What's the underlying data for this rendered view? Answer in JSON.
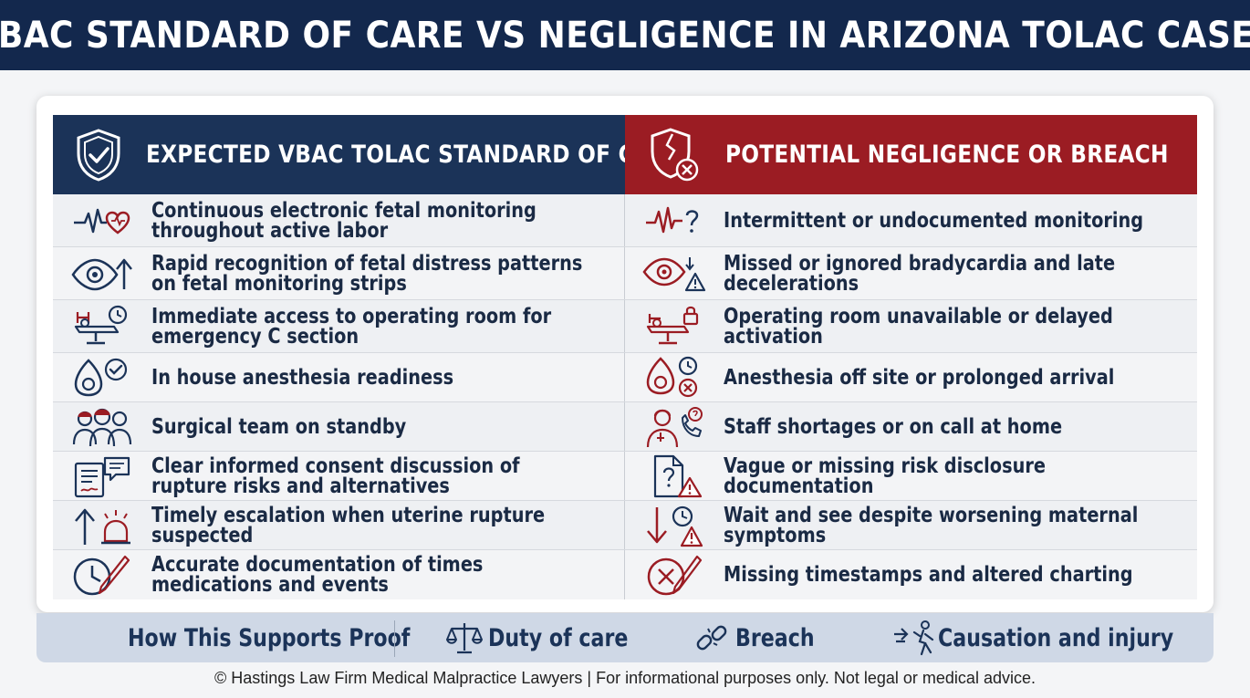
{
  "title": "VBAC STANDARD OF CARE VS NEGLIGENCE IN ARIZONA TOLAC CASES",
  "headers": {
    "left": "EXPECTED VBAC TOLAC STANDARD OF CARE",
    "right": "POTENTIAL NEGLIGENCE OR BREACH",
    "left_icon": "shield-check-icon",
    "right_icon": "broken-shield-x-icon"
  },
  "rows": [
    {
      "care": "Continuous electronic fetal monitoring throughout active labor",
      "breach": "Intermittent or undocumented monitoring",
      "care_icon": "heartbeat-monitor-icon",
      "breach_icon": "heartbeat-question-icon"
    },
    {
      "care": "Rapid recognition of fetal distress patterns on fetal monitoring strips",
      "breach": "Missed or ignored bradycardia and late decelerations",
      "care_icon": "eye-arrow-up-icon",
      "breach_icon": "eye-warning-icon"
    },
    {
      "care": "Immediate access to operating room for emergency C section",
      "breach": "Operating room unavailable or delayed activation",
      "care_icon": "operating-table-clock-icon",
      "breach_icon": "operating-table-lock-icon"
    },
    {
      "care": "In house anesthesia readiness",
      "breach": "Anesthesia off site or prolonged arrival",
      "care_icon": "anesthesia-mask-check-icon",
      "breach_icon": "anesthesia-mask-clock-icon"
    },
    {
      "care": "Surgical team on standby",
      "breach": "Staff shortages or on call at home",
      "care_icon": "surgical-team-icon",
      "breach_icon": "doctor-phone-icon"
    },
    {
      "care": "Clear informed consent discussion of rupture risks and alternatives",
      "breach": "Vague or missing risk disclosure documentation",
      "care_icon": "consent-form-chat-icon",
      "breach_icon": "document-question-warning-icon"
    },
    {
      "care": "Timely escalation when uterine rupture suspected",
      "breach": "Wait and see despite worsening maternal symptoms",
      "care_icon": "arrow-up-alarm-icon",
      "breach_icon": "arrow-down-clock-warning-icon"
    },
    {
      "care": "Accurate documentation of times medications and events",
      "breach": "Missing timestamps and altered charting",
      "care_icon": "clock-pen-icon",
      "breach_icon": "clock-x-pen-icon"
    }
  ],
  "proof_bar": {
    "label": "How This Supports Proof",
    "items": [
      {
        "label": "Duty of care",
        "icon": "scales-icon"
      },
      {
        "label": "Breach",
        "icon": "broken-chain-icon"
      },
      {
        "label": "Causation and injury",
        "icon": "impact-person-icon"
      }
    ]
  },
  "footer": "© Hastings Law Firm Medical Malpractice Lawyers | For informational purposes only. Not legal or medical advice.",
  "colors": {
    "navy": "#13284d",
    "header_navy": "#1b3358",
    "header_red": "#9b1c23",
    "icon_red": "#9b1c23",
    "icon_navy": "#1b3358"
  }
}
